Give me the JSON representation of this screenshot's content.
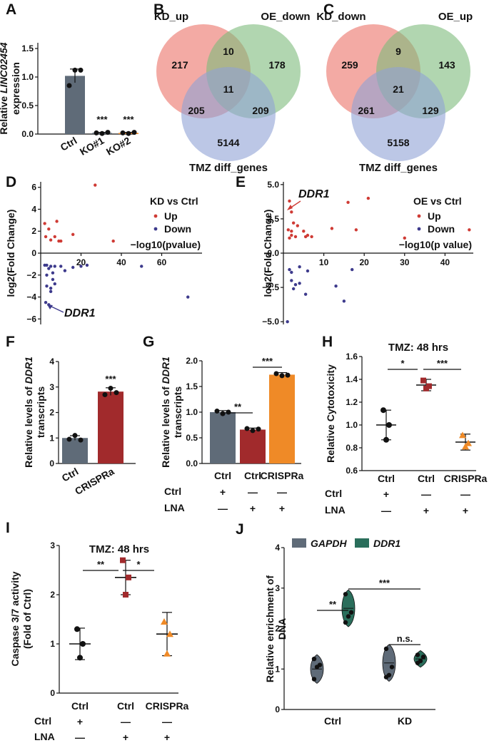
{
  "panels": {
    "A": {
      "letter": "A"
    },
    "B": {
      "letter": "B"
    },
    "C": {
      "letter": "C"
    },
    "D": {
      "letter": "D"
    },
    "E": {
      "letter": "E"
    },
    "F": {
      "letter": "F"
    },
    "G": {
      "letter": "G"
    },
    "H": {
      "letter": "H"
    },
    "I": {
      "letter": "I"
    },
    "J": {
      "letter": "J"
    }
  },
  "colors": {
    "grey": "#5f6b78",
    "darkred": "#a12a2c",
    "orange": "#ef8a27",
    "teal": "#2a6e5b",
    "pink": "#ef8e86",
    "green": "#7dba7c",
    "blue": "#8fa2d6",
    "up": "#cf3b35",
    "down": "#3d3a8c"
  },
  "chart_data": [
    {
      "id": "A",
      "type": "bar",
      "ylabel_line1": "Relative LINC02454",
      "ylabel_italic": "LINC02454",
      "ylabel_prefix": "Relative",
      "ylabel_line2": "expression",
      "categories": [
        "Ctrl",
        "KO#1",
        "KO#2"
      ],
      "values": [
        1.02,
        0.02,
        0.02
      ],
      "errors": [
        0.12,
        0.01,
        0.01
      ],
      "points": [
        [
          0.85,
          1.12,
          1.12
        ],
        [
          0.02,
          0.01,
          0.03
        ],
        [
          0.02,
          0.01,
          0.03
        ]
      ],
      "sig": [
        "",
        "***",
        "***"
      ],
      "ylim": [
        0,
        1.6
      ],
      "yticks": [
        "0.0",
        "0.5",
        "1.0",
        "1.5"
      ]
    },
    {
      "id": "B",
      "type": "venn",
      "sets": [
        "KD_up",
        "OE_down",
        "TMZ diff_genes"
      ],
      "regions": {
        "a": "217",
        "ab": "10",
        "b": "178",
        "abc": "11",
        "ac": "205",
        "bc": "209",
        "c": "5144"
      }
    },
    {
      "id": "C",
      "type": "venn",
      "sets": [
        "KD_down",
        "OE_up",
        "TMZ diff_genes"
      ],
      "regions": {
        "a": "259",
        "ab": "9",
        "b": "143",
        "abc": "21",
        "ac": "261",
        "bc": "129",
        "c": "5158"
      }
    },
    {
      "id": "D",
      "type": "scatter",
      "title": "KD vs Ctrl",
      "legend": [
        "Up",
        "Down"
      ],
      "xlabel": "−log10(pvalue)",
      "ylabel": "log2(Fold Change)",
      "xlim": [
        0,
        80
      ],
      "ylim": [
        -6.5,
        6.5
      ],
      "xticks": [
        "20",
        "40",
        "60"
      ],
      "yticks": [
        "6",
        "4",
        "2",
        "0",
        "−2",
        "−4",
        "−6"
      ],
      "annotation": "DDR1",
      "up": [
        [
          27,
          6.2
        ],
        [
          2,
          2.7
        ],
        [
          2.5,
          1.5
        ],
        [
          4,
          2.2
        ],
        [
          5,
          1.2
        ],
        [
          7,
          1.5
        ],
        [
          9,
          1.1
        ],
        [
          10,
          1.1
        ],
        [
          16,
          1.7
        ],
        [
          8,
          2.9
        ],
        [
          36,
          1.1
        ]
      ],
      "down": [
        [
          2,
          -1.1
        ],
        [
          3,
          -1.1
        ],
        [
          4,
          -1.4
        ],
        [
          5,
          -1.2
        ],
        [
          6,
          -1.8
        ],
        [
          7,
          -1.2
        ],
        [
          10,
          -1.2
        ],
        [
          12,
          -1.6
        ],
        [
          16,
          -1.3
        ],
        [
          20,
          -1.2
        ],
        [
          23,
          -1.1
        ],
        [
          3,
          -2.0
        ],
        [
          6,
          -2.4
        ],
        [
          3,
          -3.0
        ],
        [
          5,
          -3.2
        ],
        [
          7,
          -2.8
        ],
        [
          5,
          -3.5
        ],
        [
          4,
          -4.7
        ],
        [
          2.5,
          -4.5
        ],
        [
          50,
          -1.2
        ],
        [
          73,
          -4.0
        ]
      ]
    },
    {
      "id": "E",
      "type": "scatter",
      "title": "OE vs Ctrl",
      "legend": [
        "Up",
        "Down"
      ],
      "xlabel": "−log10(p value)",
      "ylabel": "log2(Fold Change)",
      "xlim": [
        0,
        47
      ],
      "ylim": [
        -5.2,
        5.2
      ],
      "xticks": [
        "10",
        "20",
        "30",
        "40"
      ],
      "yticks": [
        "5.0",
        "2.5",
        "0.0",
        "−2.5",
        "−5.0"
      ],
      "annotation": "DDR1",
      "up": [
        [
          1.5,
          3.8
        ],
        [
          16,
          3.7
        ],
        [
          21,
          4.0
        ],
        [
          2,
          3.0
        ],
        [
          2.5,
          2.2
        ],
        [
          3.5,
          2.0
        ],
        [
          1.2,
          1.7
        ],
        [
          2,
          1.6
        ],
        [
          5,
          1.6
        ],
        [
          12,
          1.8
        ],
        [
          18,
          1.7
        ],
        [
          2,
          1.3
        ],
        [
          3,
          1.2
        ],
        [
          5.5,
          1.2
        ],
        [
          7,
          1.2
        ],
        [
          30,
          1.1
        ],
        [
          46,
          1.7
        ],
        [
          1.5,
          1.1
        ],
        [
          6,
          1.3
        ]
      ],
      "down": [
        [
          1.5,
          -1.2
        ],
        [
          4,
          -1.0
        ],
        [
          2,
          -1.4
        ],
        [
          6,
          -1.3
        ],
        [
          17,
          -1.2
        ],
        [
          2,
          -2.0
        ],
        [
          3,
          -2.3
        ],
        [
          4,
          -2.2
        ],
        [
          2.5,
          -2.6
        ],
        [
          5.5,
          -3.0
        ],
        [
          15,
          -3.5
        ],
        [
          1,
          -5.0
        ],
        [
          13,
          -2.4
        ]
      ]
    },
    {
      "id": "F",
      "type": "bar",
      "ylabel_line1": "Relative levels of DDR1",
      "ylabel_italic": "DDR1",
      "ylabel_prefix": "Relative levels of",
      "ylabel_line2": "transcripts",
      "categories": [
        "Ctrl",
        "CRISPRa"
      ],
      "values": [
        1.0,
        2.82
      ],
      "errors": [
        0.09,
        0.15
      ],
      "points": [
        [
          0.95,
          1.1,
          0.92
        ],
        [
          2.7,
          2.95,
          2.78
        ]
      ],
      "sig": [
        "",
        "***"
      ],
      "ylim": [
        0,
        4
      ],
      "yticks": [
        "0",
        "1",
        "2",
        "3",
        "4"
      ]
    },
    {
      "id": "G",
      "type": "bar",
      "ylabel_line1": "Relative levels of DDR1",
      "ylabel_italic": "DDR1",
      "ylabel_prefix": "Relative levels of",
      "ylabel_line2": "transcripts",
      "categories": [
        "Ctrl",
        "Ctrl",
        "CRISPRa"
      ],
      "values": [
        1.0,
        0.66,
        1.73
      ],
      "errors": [
        0.03,
        0.03,
        0.04
      ],
      "points": [
        [
          1.02,
          0.97,
          1.0
        ],
        [
          0.68,
          0.64,
          0.67
        ],
        [
          1.75,
          1.71,
          1.72
        ]
      ],
      "sig_pairs": [
        {
          "from": 0,
          "to": 1,
          "label": "**"
        },
        {
          "from": 1,
          "to": 2,
          "label": "***"
        }
      ],
      "ylim": [
        0,
        2.0
      ],
      "yticks": [
        "0.0",
        "0.5",
        "1.0",
        "1.5",
        "2.0"
      ],
      "row_labels": [
        "Ctrl",
        "LNA"
      ],
      "ctrl_row": [
        "+",
        "—",
        "—"
      ],
      "lna_row": [
        "—",
        "+",
        "+"
      ]
    },
    {
      "id": "H",
      "type": "scatter",
      "title": "TMZ: 48 hrs",
      "ylabel": "Relative Cytotoxicity",
      "categories": [
        "Ctrl",
        "Ctrl",
        "CRISPRa"
      ],
      "means": [
        1.0,
        1.35,
        0.85
      ],
      "errors": [
        0.13,
        0.05,
        0.07
      ],
      "points": [
        [
          1.13,
          0.87,
          1.0
        ],
        [
          1.39,
          1.32,
          1.34
        ],
        [
          0.91,
          0.81,
          0.84
        ]
      ],
      "sig_pairs": [
        {
          "from": 0,
          "to": 1,
          "label": "*"
        },
        {
          "from": 1,
          "to": 2,
          "label": "***"
        }
      ],
      "ylim": [
        0.6,
        1.6
      ],
      "yticks": [
        "0.6",
        "0.8",
        "1.0",
        "1.2",
        "1.4",
        "1.6"
      ],
      "row_labels": [
        "Ctrl",
        "LNA"
      ],
      "ctrl_row": [
        "+",
        "—",
        "—"
      ],
      "lna_row": [
        "—",
        "+",
        "+"
      ]
    },
    {
      "id": "I",
      "type": "scatter",
      "title": "TMZ: 48 hrs",
      "ylabel_line1": "Caspase 3/7 activity",
      "ylabel_line2": "(Fold of Ctrl)",
      "categories": [
        "Ctrl",
        "Ctrl",
        "CRISPRa"
      ],
      "means": [
        1.0,
        2.35,
        1.2
      ],
      "errors": [
        0.32,
        0.35,
        0.44
      ],
      "points": [
        [
          1.3,
          0.72,
          1.0
        ],
        [
          2.7,
          2.0,
          2.35
        ],
        [
          1.45,
          0.8,
          1.2
        ]
      ],
      "sig_pairs": [
        {
          "from": 0,
          "to": 1,
          "label": "**"
        },
        {
          "from": 1,
          "to": 2,
          "label": "*"
        }
      ],
      "ylim": [
        0,
        3
      ],
      "yticks": [
        "0",
        "1",
        "2",
        "3"
      ],
      "row_labels": [
        "Ctrl",
        "LNA"
      ],
      "ctrl_row": [
        "+",
        "—",
        "—"
      ],
      "lna_row": [
        "—",
        "+",
        "+"
      ]
    },
    {
      "id": "J",
      "type": "violin",
      "ylabel_line1": "Relative enrichment of",
      "ylabel_line2": "DNA",
      "categories": [
        "Ctrl",
        "KD"
      ],
      "legend": [
        "GAPDH",
        "DDR1"
      ],
      "series": [
        {
          "name": "GAPDH",
          "points": [
            [
              0.75,
              1.05,
              1.1,
              1.25
            ],
            [
              0.8,
              0.85,
              1.05,
              1.5
            ]
          ]
        },
        {
          "name": "DDR1",
          "points": [
            [
              2.15,
              2.3,
              2.4,
              2.85
            ],
            [
              1.15,
              1.2,
              1.3,
              1.35
            ]
          ]
        }
      ],
      "sig_pairs": [
        {
          "label": "**"
        },
        {
          "label": "***"
        },
        {
          "label": "n.s."
        }
      ],
      "ylim": [
        0,
        4
      ],
      "yticks": [
        "0",
        "1",
        "2",
        "3",
        "4"
      ]
    }
  ]
}
